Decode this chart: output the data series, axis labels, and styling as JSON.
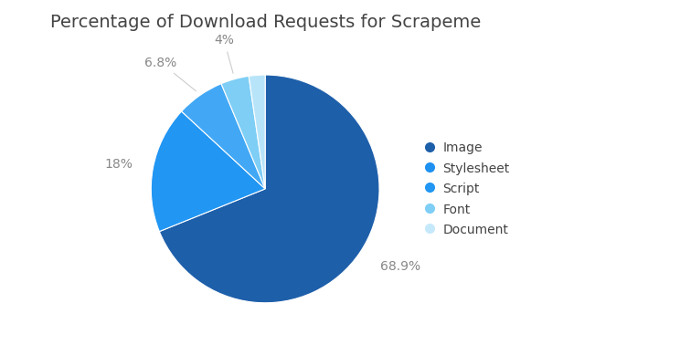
{
  "title": "Percentage of Download Requests for Scrapeme",
  "labels": [
    "Image",
    "Stylesheet",
    "Script",
    "Font",
    "Document"
  ],
  "values": [
    68.9,
    18.0,
    6.8,
    4.0,
    2.3
  ],
  "colors": [
    "#1e5faa",
    "#2196f3",
    "#42a8f5",
    "#7ecef5",
    "#b8e4f9"
  ],
  "legend_labels": [
    "Image",
    "Stylesheet",
    "Script",
    "Font",
    "Document"
  ],
  "legend_colors": [
    "#1e5faa",
    "#1e90f0",
    "#2196f3",
    "#7ecef5",
    "#c5e9fb"
  ],
  "title_fontsize": 14,
  "label_fontsize": 10,
  "legend_fontsize": 10,
  "background_color": "#ffffff",
  "startangle": 90,
  "pct_labels": [
    "68.9%",
    "18%",
    "6.8%",
    "4%",
    ""
  ],
  "label_color": "#888888",
  "text_color": "#444444"
}
